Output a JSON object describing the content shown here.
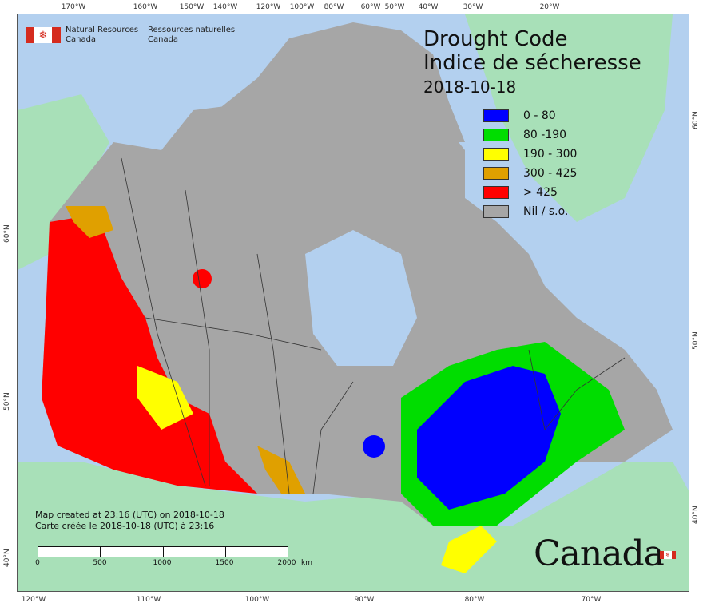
{
  "title": {
    "en": "Drought Code",
    "fr": "Indice de sécheresse",
    "date": "2018-10-18"
  },
  "agency": {
    "en_line1": "Natural Resources",
    "en_line2": "Canada",
    "fr_line1": "Ressources naturelles",
    "fr_line2": "Canada"
  },
  "legend": [
    {
      "label": "0 - 80",
      "color": "#0000ff"
    },
    {
      "label": "80 -190",
      "color": "#00dd00"
    },
    {
      "label": "190 - 300",
      "color": "#ffff00"
    },
    {
      "label": "300 - 425",
      "color": "#e0a000"
    },
    {
      "label": "> 425",
      "color": "#ff0000"
    },
    {
      "label": "Nil / s.o.",
      "color": "#a6a6a6"
    }
  ],
  "credits": {
    "en": "Map created at 23:16 (UTC) on 2018-10-18",
    "fr": "Carte créée le 2018-10-18 (UTC) à 23:16"
  },
  "scale_bar": {
    "labels": [
      "0",
      "500",
      "1000",
      "1500",
      "2000"
    ],
    "unit": "km"
  },
  "wordmark": "Canada",
  "graticule": {
    "top": [
      "170°W",
      "160°W",
      "150°W",
      "140°W",
      "120°W",
      "100°W",
      "80°W",
      "60°W",
      "50°W",
      "40°W",
      "30°W",
      "20°W"
    ],
    "bottom": [
      "120°W",
      "110°W",
      "100°W",
      "90°W",
      "80°W",
      "70°W"
    ],
    "left": [
      "60°N",
      "50°N",
      "40°N"
    ],
    "right": [
      "60°N",
      "50°N",
      "40°N"
    ]
  },
  "colors": {
    "ocean": "#b3d0ef",
    "land_other": "#a8e0b8",
    "no_data": "#a6a6a6",
    "border": "#333333"
  }
}
